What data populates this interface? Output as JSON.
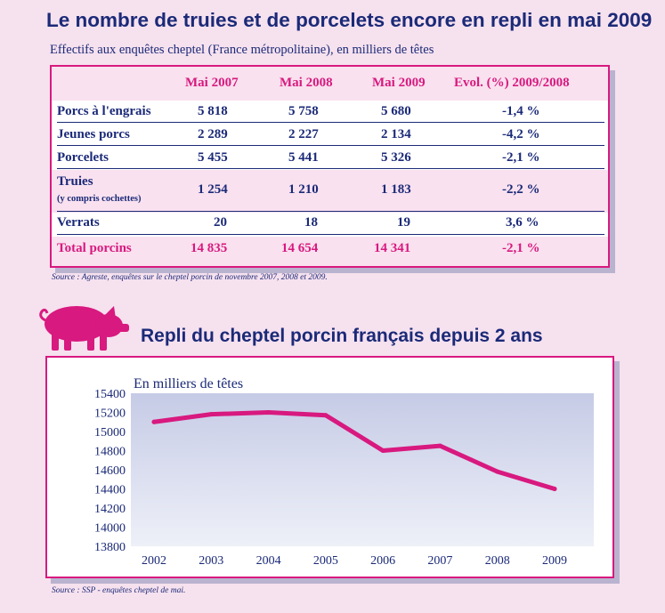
{
  "title": "Le nombre de truies et de porcelets encore en repli en mai 2009",
  "subtitle": "Effectifs aux enquêtes cheptel (France métropolitaine), en milliers de têtes",
  "table": {
    "headers": [
      "",
      "Mai 2007",
      "Mai 2008",
      "Mai 2009",
      "Evol. (%) 2009/2008"
    ],
    "rows": [
      {
        "label": "Porcs à l'engrais",
        "sublabel": "",
        "v2007": "5 818",
        "v2008": "5 758",
        "v2009": "5 680",
        "evol": "-1,4 %"
      },
      {
        "label": "Jeunes porcs",
        "sublabel": "",
        "v2007": "2 289",
        "v2008": "2 227",
        "v2009": "2 134",
        "evol": "-4,2 %"
      },
      {
        "label": "Porcelets",
        "sublabel": "",
        "v2007": "5 455",
        "v2008": "5 441",
        "v2009": "5 326",
        "evol": "-2,1 %"
      },
      {
        "label": "Truies",
        "sublabel": "(y compris cochettes)",
        "v2007": "1 254",
        "v2008": "1 210",
        "v2009": "1 183",
        "evol": "-2,2 %"
      },
      {
        "label": "Verrats",
        "sublabel": "",
        "v2007": "20",
        "v2008": "18",
        "v2009": "19",
        "evol": "3,6 %"
      },
      {
        "label": "Total porcins",
        "sublabel": "",
        "v2007": "14 835",
        "v2008": "14 654",
        "v2009": "14 341",
        "evol": "-2,1 %"
      }
    ]
  },
  "source1": "Source : Agreste, enquêtes sur le cheptel porcin de novembre 2007, 2008 et 2009.",
  "pig_icon": "pig-icon",
  "colors": {
    "accent": "#d8197f",
    "text": "#1b2a78",
    "background": "#f6e1ee"
  },
  "chart_data": {
    "type": "line",
    "title": "Repli du cheptel porcin français depuis 2 ans",
    "ylabel": "En milliers de têtes",
    "xlabel": "",
    "x": [
      "2002",
      "2003",
      "2004",
      "2005",
      "2006",
      "2007",
      "2008",
      "2009"
    ],
    "series": [
      {
        "values": [
          15100,
          15180,
          15200,
          15170,
          14800,
          14850,
          14580,
          14400
        ]
      }
    ],
    "ylim": [
      13800,
      15400
    ],
    "yticks": [
      13800,
      14000,
      14200,
      14400,
      14600,
      14800,
      15000,
      15200,
      15400
    ],
    "grid": false
  },
  "source2": "Source : SSP - enquêtes cheptel de mai."
}
